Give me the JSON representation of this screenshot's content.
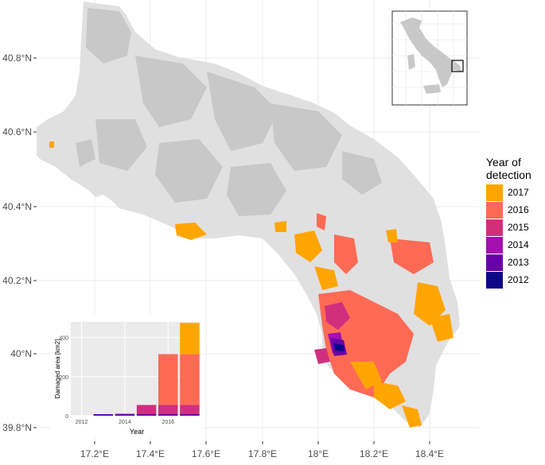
{
  "map": {
    "lat_labels": [
      "40.8°N",
      "40.6°N",
      "40.4°N",
      "40.2°N",
      "40°N",
      "39.8°N"
    ],
    "lon_labels": [
      "17.2°E",
      "17.4°E",
      "17.6°E",
      "17.8°E",
      "18°E",
      "18.2°E",
      "18.4°E"
    ],
    "land_color": "#e0e0e0",
    "olive_color": "#c8c8c8",
    "panel_background": "#ffffff",
    "grid_color": "#ebebeb"
  },
  "legend": {
    "title_line1": "Year of",
    "title_line2": "detection",
    "items": [
      {
        "label": "2017",
        "color": "#ffa500"
      },
      {
        "label": "2016",
        "color": "#ff6a55"
      },
      {
        "label": "2015",
        "color": "#d12f7d"
      },
      {
        "label": "2014",
        "color": "#a40fb0"
      },
      {
        "label": "2013",
        "color": "#6a00a8"
      },
      {
        "label": "2012",
        "color": "#0d0887"
      }
    ]
  },
  "inset_chart": {
    "ylabel": "Damaged area [km2]",
    "xlabel": "Year",
    "x_ticks": [
      "2012",
      "2014",
      "2016"
    ],
    "y_ticks": [
      "0",
      "200",
      "400"
    ]
  },
  "chart_data": {
    "type": "bar",
    "stacked": true,
    "categories": [
      "2012",
      "2013",
      "2014",
      "2015",
      "2016",
      "2017"
    ],
    "series": [
      {
        "name": "2012",
        "color": "#0d0887",
        "values": [
          0,
          0,
          0,
          0,
          0,
          0
        ]
      },
      {
        "name": "2013",
        "color": "#6a00a8",
        "values": [
          0,
          8,
          8,
          8,
          8,
          8
        ]
      },
      {
        "name": "2014",
        "color": "#a40fb0",
        "values": [
          0,
          0,
          2,
          2,
          2,
          2
        ]
      },
      {
        "name": "2015",
        "color": "#d12f7d",
        "values": [
          0,
          0,
          0,
          45,
          45,
          45
        ]
      },
      {
        "name": "2016",
        "color": "#ff6a55",
        "values": [
          0,
          0,
          0,
          0,
          260,
          260
        ]
      },
      {
        "name": "2017",
        "color": "#ffa500",
        "values": [
          0,
          0,
          0,
          0,
          0,
          160
        ]
      }
    ],
    "xlabel": "Year",
    "ylabel": "Damaged area [km2]",
    "ylim": [
      0,
      480
    ],
    "grid": true
  }
}
